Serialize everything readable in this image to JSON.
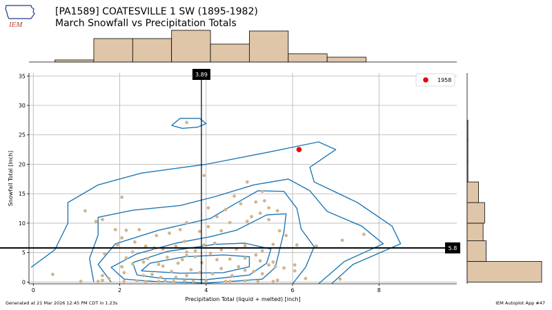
{
  "header": {
    "title_line1": "[PA1589] COATESVILLE 1 SW (1895-1982)",
    "title_line2": "March Snowfall vs Precipitation Totals",
    "logo_text": "IEM"
  },
  "footer": {
    "left": "Generated at 21 Mar 2026 12:45 PM CDT in 1.23s",
    "right": "IEM Autoplot App #47"
  },
  "colors": {
    "points": "#d2b48c",
    "highlight": "#ee0000",
    "contour": "#1f77b4",
    "hist_fill": "#dfc6a8",
    "grid": "#b0b0b0"
  },
  "chart_data": [
    {
      "type": "scatter",
      "xlabel": "Precipitation Total (liquid + melted) [inch]",
      "ylabel": "Snowfall Total [inch]",
      "xlim": [
        -0.1,
        9.8
      ],
      "ylim": [
        -0.3,
        35.5
      ],
      "xticks": [
        0,
        2,
        4,
        6,
        8
      ],
      "yticks": [
        0,
        5,
        10,
        15,
        20,
        25,
        30,
        35
      ],
      "grid": true,
      "legend_position": "top-right",
      "highlight": {
        "name": "1958",
        "x": 6.15,
        "y": 22.5
      },
      "mean_x": 3.89,
      "mean_x_label": "3.89",
      "mean_y": 5.8,
      "mean_y_label": "5.8",
      "points": [
        [
          0.45,
          1.3
        ],
        [
          1.1,
          0.1
        ],
        [
          1.5,
          0.1
        ],
        [
          1.6,
          0.3
        ],
        [
          1.6,
          1.1
        ],
        [
          1.75,
          0.6
        ],
        [
          2.1,
          0.1
        ],
        [
          2.4,
          0.2
        ],
        [
          2.6,
          0.1
        ],
        [
          2.9,
          0.1
        ],
        [
          3.05,
          0.2
        ],
        [
          3.25,
          0.1
        ],
        [
          3.5,
          0.2
        ],
        [
          3.7,
          0.1
        ],
        [
          4.0,
          0.2
        ],
        [
          4.45,
          0.1
        ],
        [
          4.55,
          0.1
        ],
        [
          4.9,
          0.2
        ],
        [
          5.2,
          0.1
        ],
        [
          5.55,
          0.1
        ],
        [
          5.65,
          0.3
        ],
        [
          6.3,
          0.6
        ],
        [
          7.1,
          0.5
        ],
        [
          2.1,
          1.6
        ],
        [
          2.55,
          1.1
        ],
        [
          2.75,
          1.3
        ],
        [
          2.95,
          0.8
        ],
        [
          3.3,
          0.8
        ],
        [
          3.2,
          1.8
        ],
        [
          3.55,
          1.1
        ],
        [
          3.65,
          2.1
        ],
        [
          3.85,
          1.6
        ],
        [
          4.15,
          1.4
        ],
        [
          4.35,
          2.3
        ],
        [
          4.6,
          1.1
        ],
        [
          4.9,
          2.0
        ],
        [
          5.1,
          1.8
        ],
        [
          5.3,
          1.4
        ],
        [
          5.45,
          2.9
        ],
        [
          5.6,
          2.6
        ],
        [
          6.05,
          2.9
        ],
        [
          2.05,
          2.6
        ],
        [
          2.3,
          3.1
        ],
        [
          2.55,
          3.4
        ],
        [
          2.65,
          4.0
        ],
        [
          2.9,
          3.0
        ],
        [
          3.0,
          2.7
        ],
        [
          3.1,
          4.2
        ],
        [
          3.35,
          3.2
        ],
        [
          3.45,
          3.8
        ],
        [
          3.55,
          4.5
        ],
        [
          3.75,
          4.3
        ],
        [
          3.9,
          3.3
        ],
        [
          4.1,
          4.9
        ],
        [
          4.25,
          3.8
        ],
        [
          4.55,
          3.9
        ],
        [
          4.75,
          2.6
        ],
        [
          4.9,
          4.1
        ],
        [
          5.15,
          4.6
        ],
        [
          5.25,
          3.6
        ],
        [
          5.55,
          3.4
        ],
        [
          5.8,
          2.4
        ],
        [
          6.05,
          1.9
        ],
        [
          1.65,
          4.8
        ],
        [
          2.15,
          4.1
        ],
        [
          2.3,
          5.1
        ],
        [
          2.6,
          6.1
        ],
        [
          2.8,
          5.8
        ],
        [
          3.0,
          5.6
        ],
        [
          3.3,
          6.1
        ],
        [
          3.5,
          6.9
        ],
        [
          3.55,
          5.1
        ],
        [
          3.75,
          5.3
        ],
        [
          3.95,
          6.3
        ],
        [
          4.2,
          6.6
        ],
        [
          4.35,
          5.5
        ],
        [
          4.7,
          5.6
        ],
        [
          4.9,
          6.2
        ],
        [
          5.3,
          5.3
        ],
        [
          5.55,
          6.4
        ],
        [
          6.1,
          6.3
        ],
        [
          6.55,
          6.1
        ],
        [
          7.15,
          7.1
        ],
        [
          7.65,
          8.1
        ],
        [
          1.95,
          6.3
        ],
        [
          2.05,
          7.5
        ],
        [
          2.15,
          8.8
        ],
        [
          2.35,
          6.8
        ],
        [
          2.85,
          7.9
        ],
        [
          3.15,
          8.3
        ],
        [
          3.4,
          8.9
        ],
        [
          3.55,
          10.1
        ],
        [
          3.85,
          8.6
        ],
        [
          4.05,
          9.4
        ],
        [
          4.35,
          8.7
        ],
        [
          4.55,
          10.1
        ],
        [
          4.95,
          10.3
        ],
        [
          5.25,
          11.7
        ],
        [
          5.45,
          10.6
        ],
        [
          5.65,
          12.1
        ],
        [
          5.85,
          7.9
        ],
        [
          5.7,
          8.7
        ],
        [
          1.45,
          10.3
        ],
        [
          1.6,
          10.6
        ],
        [
          1.9,
          8.9
        ],
        [
          2.45,
          8.9
        ],
        [
          1.2,
          12.1
        ],
        [
          2.05,
          14.4
        ],
        [
          4.05,
          12.6
        ],
        [
          4.25,
          11.1
        ],
        [
          4.45,
          12.3
        ],
        [
          4.8,
          13.3
        ],
        [
          4.65,
          14.6
        ],
        [
          5.05,
          11.1
        ],
        [
          5.15,
          13.6
        ],
        [
          5.35,
          13.8
        ],
        [
          5.45,
          12.6
        ],
        [
          5.3,
          15.4
        ],
        [
          4.95,
          17.0
        ],
        [
          3.95,
          18.1
        ],
        [
          3.55,
          27.1
        ]
      ],
      "contours": [
        [
          [
            -0.05,
            2.5
          ],
          [
            0.5,
            5.5
          ],
          [
            0.8,
            10
          ],
          [
            0.8,
            13.5
          ],
          [
            1.5,
            16.5
          ],
          [
            2.5,
            18.5
          ],
          [
            4,
            20
          ],
          [
            5.4,
            22
          ],
          [
            6.6,
            23.8
          ],
          [
            7.0,
            22.5
          ],
          [
            6.4,
            19.5
          ],
          [
            6.5,
            17
          ],
          [
            7.5,
            13.5
          ],
          [
            8.3,
            9.5
          ],
          [
            8.5,
            6.5
          ],
          [
            7.4,
            3
          ],
          [
            6.9,
            -0.3
          ]
        ],
        [
          [
            1.4,
            0
          ],
          [
            1.3,
            4
          ],
          [
            1.5,
            8
          ],
          [
            1.5,
            11
          ],
          [
            2.3,
            12.2
          ],
          [
            3.4,
            13
          ],
          [
            4.2,
            14.5
          ],
          [
            5.1,
            16.5
          ],
          [
            5.9,
            17.5
          ],
          [
            6.4,
            15.5
          ],
          [
            6.8,
            12
          ],
          [
            7.6,
            9.5
          ],
          [
            8.1,
            6.5
          ],
          [
            7.2,
            3.5
          ],
          [
            6.6,
            -0.3
          ]
        ],
        [
          [
            1.8,
            0
          ],
          [
            1.5,
            3
          ],
          [
            1.9,
            6.5
          ],
          [
            2.9,
            8.8
          ],
          [
            4.1,
            10.8
          ],
          [
            4.6,
            13
          ],
          [
            5.2,
            15.5
          ],
          [
            5.8,
            15.4
          ],
          [
            6.1,
            12.5
          ],
          [
            6.2,
            9
          ],
          [
            6.5,
            6
          ],
          [
            6.3,
            2.5
          ],
          [
            6.0,
            -0.3
          ]
        ],
        [
          [
            2.1,
            0.5
          ],
          [
            1.8,
            2.5
          ],
          [
            2.4,
            4.8
          ],
          [
            3.3,
            6.6
          ],
          [
            4.1,
            7.7
          ],
          [
            4.7,
            8.8
          ],
          [
            5.4,
            11.4
          ],
          [
            5.85,
            11.6
          ],
          [
            5.8,
            8.5
          ],
          [
            5.7,
            5.5
          ],
          [
            5.6,
            2.5
          ],
          [
            5.3,
            0.5
          ],
          [
            4.0,
            -0.2
          ],
          [
            2.8,
            0.1
          ],
          [
            2.1,
            0.5
          ]
        ],
        [
          [
            2.4,
            1.2
          ],
          [
            2.3,
            3.3
          ],
          [
            3.1,
            5.2
          ],
          [
            4.2,
            6.4
          ],
          [
            4.9,
            6.6
          ],
          [
            5.5,
            5.6
          ],
          [
            5.4,
            3.2
          ],
          [
            5.0,
            1.2
          ],
          [
            4.0,
            0.4
          ],
          [
            3.0,
            0.6
          ],
          [
            2.4,
            1.2
          ]
        ],
        [
          [
            2.5,
            1.9
          ],
          [
            2.7,
            3.2
          ],
          [
            3.5,
            4.3
          ],
          [
            4.4,
            4.6
          ],
          [
            5.0,
            4.3
          ],
          [
            5.0,
            2.6
          ],
          [
            4.4,
            1.6
          ],
          [
            3.4,
            1.5
          ],
          [
            2.5,
            1.9
          ]
        ],
        [
          [
            3.2,
            26.6
          ],
          [
            3.4,
            27.8
          ],
          [
            3.85,
            27.8
          ],
          [
            4.0,
            26.9
          ],
          [
            3.8,
            26.3
          ],
          [
            3.45,
            26.1
          ],
          [
            3.2,
            26.6
          ]
        ]
      ],
      "top_histogram": {
        "bin_edges": [
          0.5,
          1.4,
          2.3,
          3.2,
          4.1,
          5.0,
          5.9,
          6.8,
          7.7
        ],
        "counts": [
          3,
          34,
          34,
          46,
          26,
          45,
          12,
          7
        ]
      },
      "right_histogram": {
        "bin_edges": [
          0,
          3.5,
          7,
          10,
          13.5,
          17,
          20.5,
          24,
          27.5
        ],
        "counts": [
          98,
          25,
          21,
          23,
          15,
          1,
          1,
          1
        ]
      }
    }
  ]
}
